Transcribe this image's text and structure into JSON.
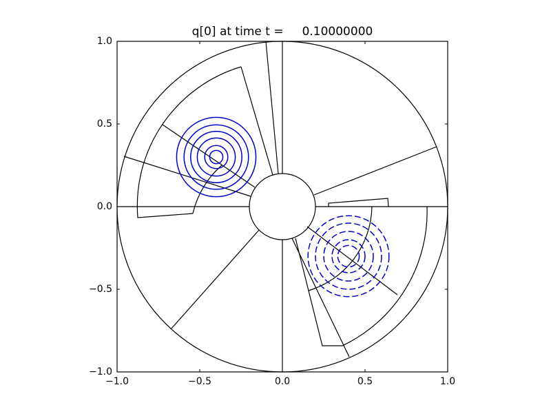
{
  "chart_data": {
    "type": "contour",
    "title": "q[0] at time t =     0.10000000",
    "xlim": [
      -1,
      1
    ],
    "ylim": [
      -1,
      1
    ],
    "xticks": [
      {
        "value": -1,
        "label": "−1.0"
      },
      {
        "value": -0.5,
        "label": "−0.5"
      },
      {
        "value": 0,
        "label": "0.0"
      },
      {
        "value": 0.5,
        "label": "0.5"
      },
      {
        "value": 1,
        "label": "1.0"
      }
    ],
    "yticks": [
      {
        "value": -1,
        "label": "−1.0"
      },
      {
        "value": -0.5,
        "label": "−0.5"
      },
      {
        "value": 0,
        "label": "0.0"
      },
      {
        "value": 0.5,
        "label": "0.5"
      },
      {
        "value": 1,
        "label": "1.0"
      }
    ],
    "contours": [
      {
        "center": [
          -0.4,
          0.3
        ],
        "radii": [
          0.24,
          0.195,
          0.155,
          0.115,
          0.07,
          0.04
        ],
        "color": "#0000cc",
        "linestyle": "solid"
      },
      {
        "center": [
          0.4,
          -0.3
        ],
        "radii": [
          0.245,
          0.2,
          0.15,
          0.1,
          0.065
        ],
        "color": "#0000cc",
        "linestyle": "dashed"
      }
    ]
  }
}
